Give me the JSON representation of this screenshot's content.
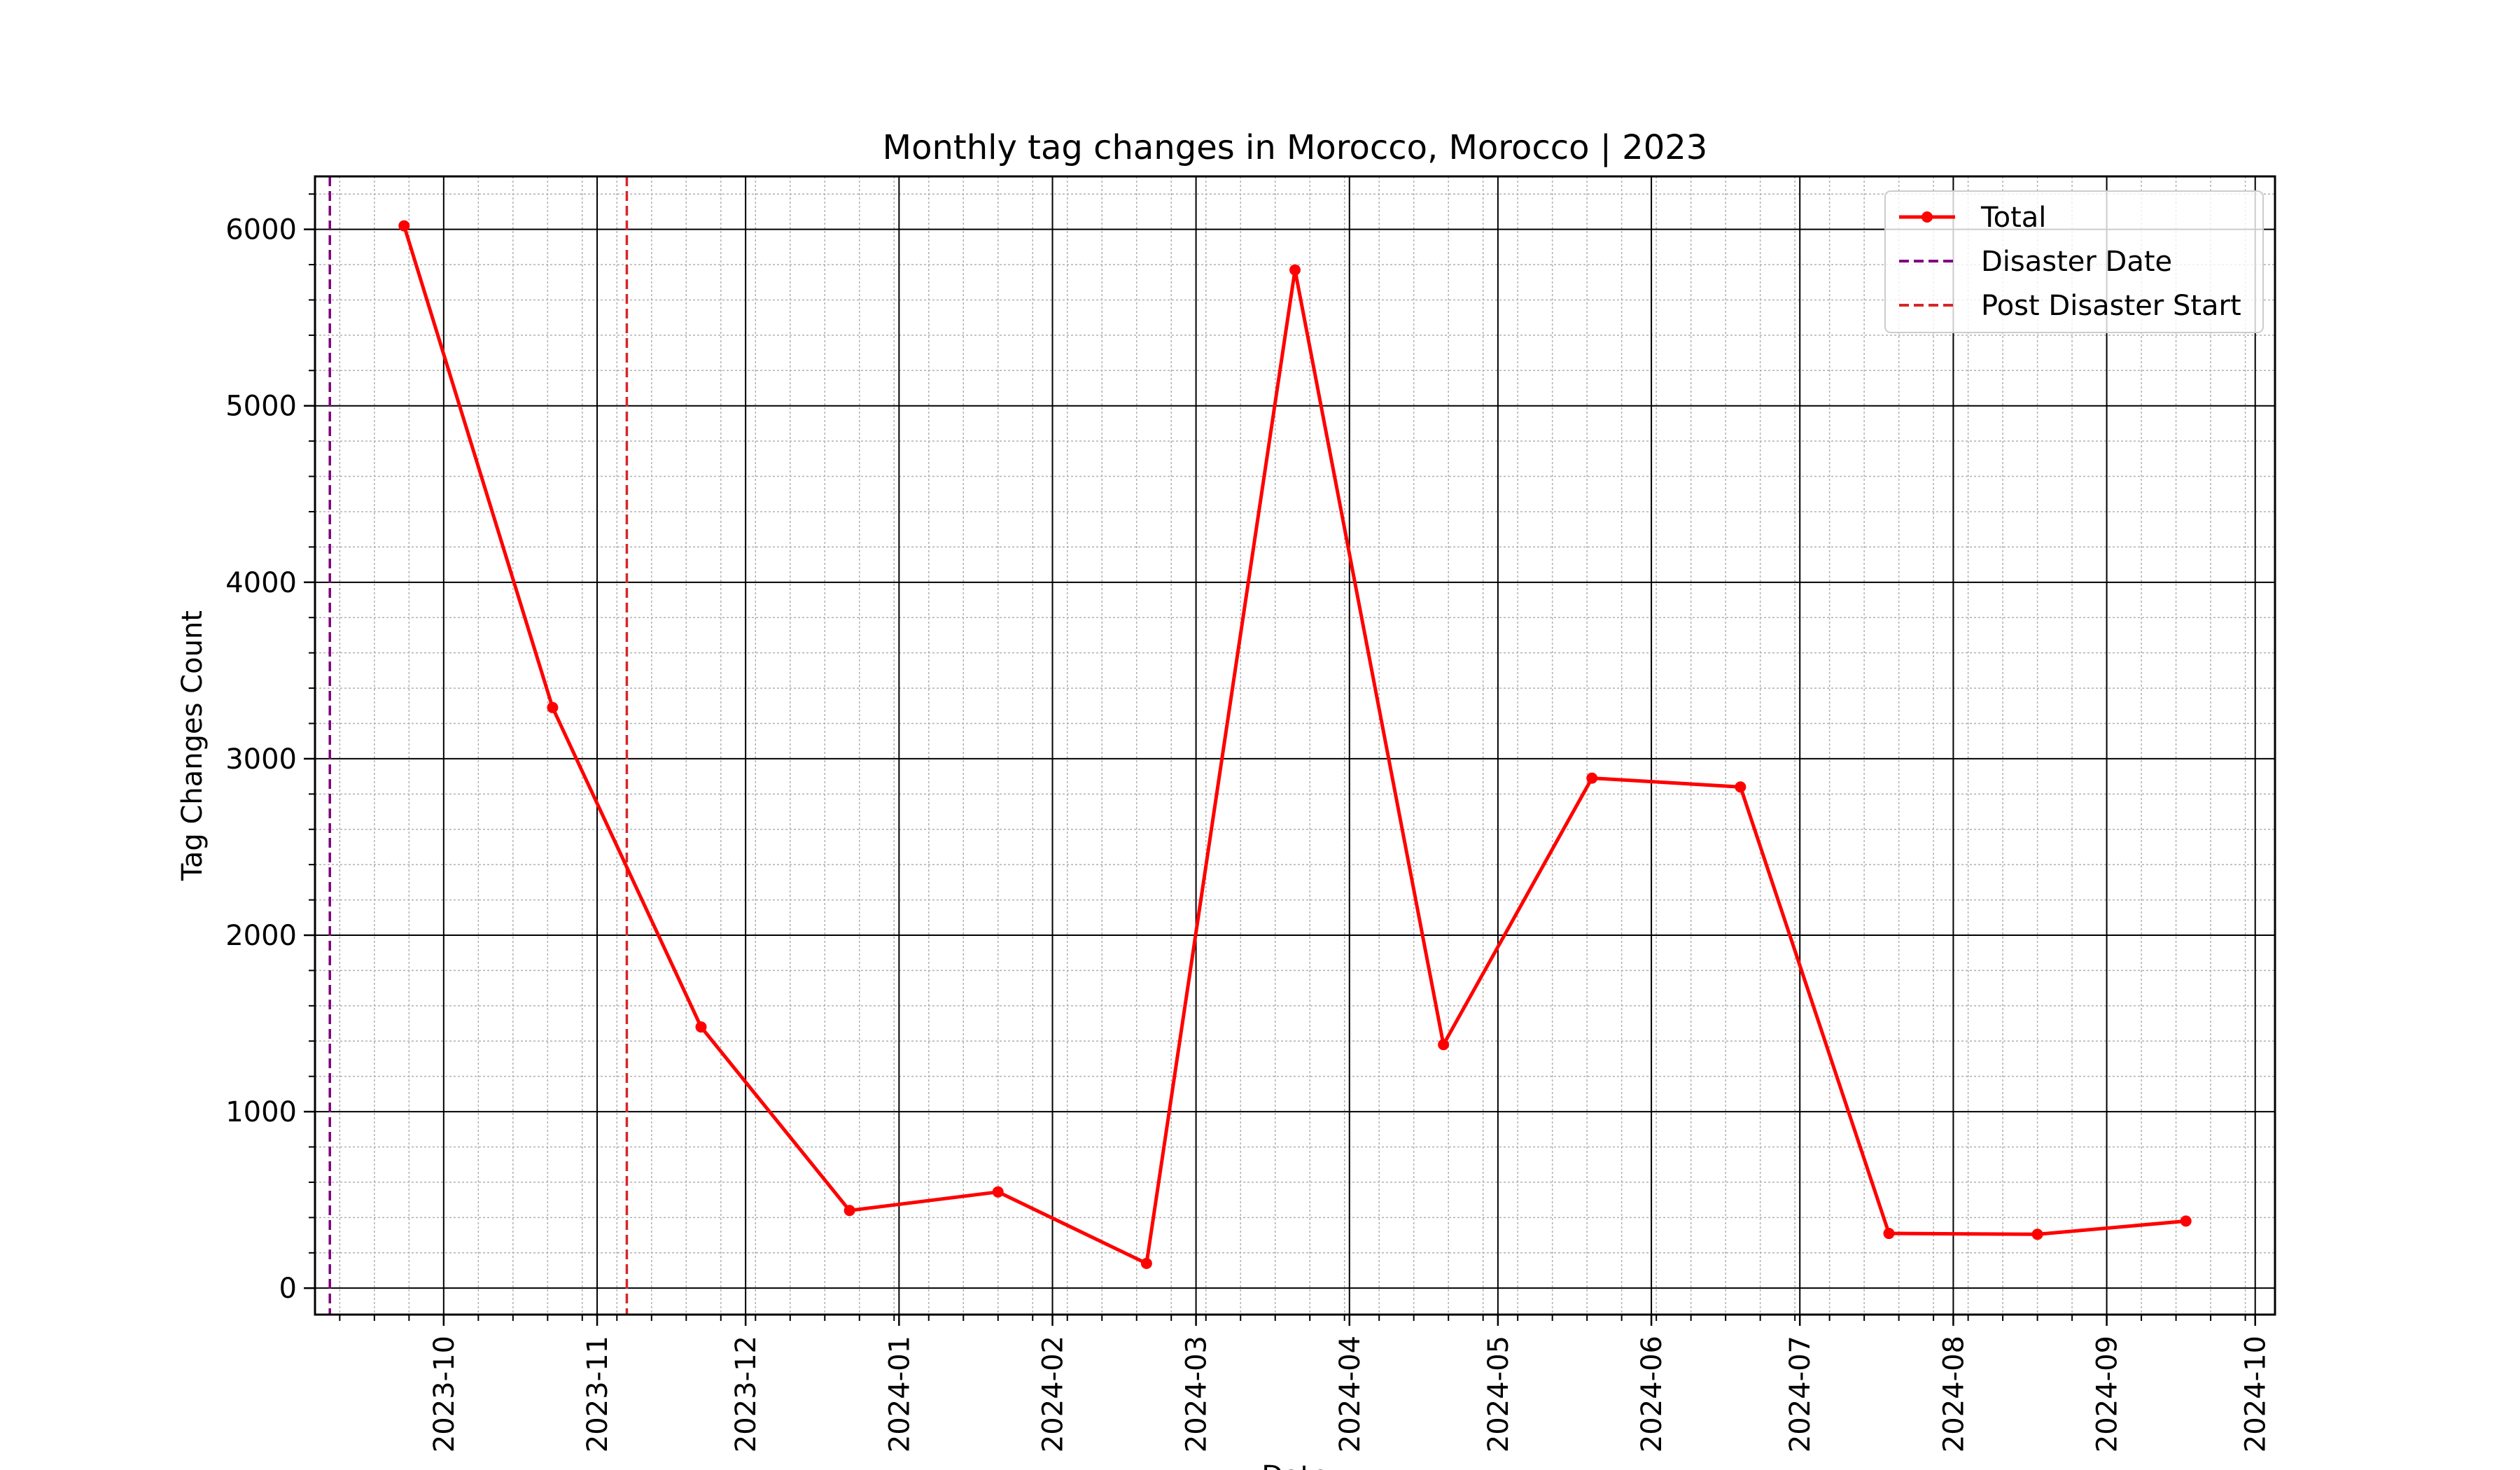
{
  "chart_data": {
    "type": "line",
    "title": "Monthly tag changes in Morocco, Morocco | 2023",
    "xlabel": "Date",
    "ylabel": "Tag Changes Count",
    "x_axis": {
      "type": "date",
      "range": [
        "2023-09-05",
        "2024-10-05"
      ],
      "major_ticks": [
        "2023-10-01",
        "2023-11-01",
        "2023-12-01",
        "2024-01-01",
        "2024-02-01",
        "2024-03-01",
        "2024-04-01",
        "2024-05-01",
        "2024-06-01",
        "2024-07-01",
        "2024-08-01",
        "2024-09-01",
        "2024-10-01"
      ],
      "tick_labels": [
        "2023-10",
        "2023-11",
        "2023-12",
        "2024-01",
        "2024-02",
        "2024-03",
        "2024-04",
        "2024-05",
        "2024-06",
        "2024-07",
        "2024-08",
        "2024-09",
        "2024-10"
      ],
      "label_rotation_deg": 90
    },
    "y_axis": {
      "range": [
        -150,
        6300
      ],
      "major_ticks": [
        0,
        1000,
        2000,
        3000,
        4000,
        5000,
        6000
      ],
      "tick_labels": [
        "0",
        "1000",
        "2000",
        "3000",
        "4000",
        "5000",
        "6000"
      ],
      "minor_step": 200
    },
    "grid": {
      "major": true,
      "minor": true
    },
    "series": [
      {
        "name": "Total",
        "color": "#ff0000",
        "marker": "circle",
        "x": [
          "2023-09-23",
          "2023-10-23",
          "2023-11-22",
          "2023-12-22",
          "2024-01-21",
          "2024-02-20",
          "2024-03-21",
          "2024-04-20",
          "2024-05-20",
          "2024-06-19",
          "2024-07-19",
          "2024-08-18",
          "2024-09-17"
        ],
        "y": [
          6020,
          3290,
          1480,
          440,
          545,
          140,
          5770,
          1380,
          2890,
          2840,
          310,
          305,
          380
        ]
      }
    ],
    "reference_lines": [
      {
        "name": "Disaster Date",
        "x": "2023-09-08",
        "color": "#800080",
        "style": "dashed"
      },
      {
        "name": "Post Disaster Start",
        "x": "2023-11-07",
        "color": "#d62728",
        "style": "dashed"
      }
    ],
    "legend": {
      "position": "top-right",
      "entries": [
        "Total",
        "Disaster Date",
        "Post Disaster Start"
      ]
    }
  }
}
